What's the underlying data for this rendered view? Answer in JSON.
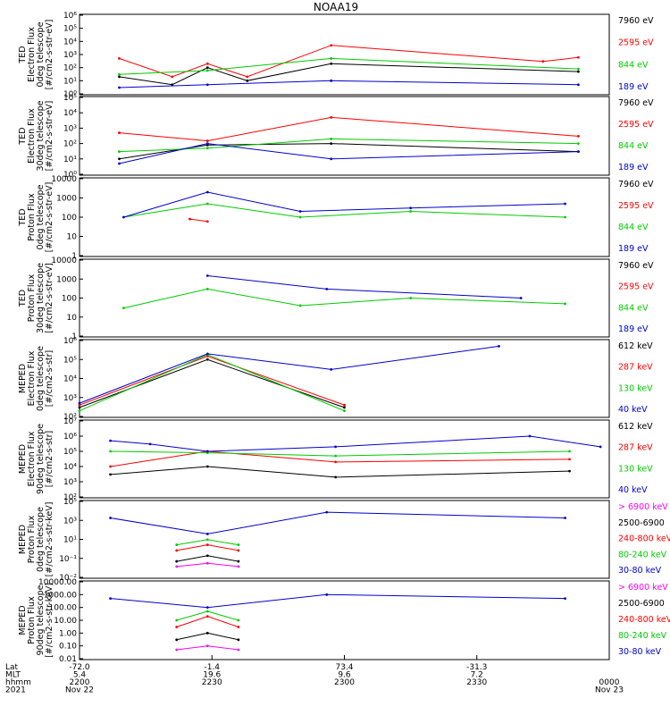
{
  "title": "NOAA19",
  "panels": [
    {
      "ylabel": [
        "TED",
        "Electron Flux",
        "0deg telescope",
        "[#/cm2-s-str-eV]"
      ],
      "yticks": [
        "10⁰",
        "10¹",
        "10²",
        "10³",
        "10⁴",
        "10⁵",
        "10⁶"
      ],
      "legend": [
        "7960 eV",
        "2595 eV",
        "844 eV",
        "189 eV"
      ],
      "legend_colors": [
        "#000000",
        "#ff0000",
        "#00cc00",
        "#0000cc"
      ]
    },
    {
      "ylabel": [
        "TED",
        "Electron Flux",
        "30deg telescope",
        "[#/cm2-s-str-eV]"
      ],
      "yticks": [
        "10⁰",
        "10¹",
        "10²",
        "10³",
        "10⁴",
        "10⁵"
      ],
      "legend": [
        "7960 eV",
        "2595 eV",
        "844 eV",
        "189 eV"
      ],
      "legend_colors": [
        "#000000",
        "#ff0000",
        "#00cc00",
        "#0000cc"
      ]
    },
    {
      "ylabel": [
        "TED",
        "Proton Flux",
        "0deg telescope",
        "[#/cm2-s-str-eV]"
      ],
      "yticks": [
        "1",
        "10",
        "100",
        "1000",
        "10000"
      ],
      "legend": [
        "7960 eV",
        "2595 eV",
        "844 eV",
        "189 eV"
      ],
      "legend_colors": [
        "#000000",
        "#ff0000",
        "#00cc00",
        "#0000cc"
      ]
    },
    {
      "ylabel": [
        "TED",
        "Proton Flux",
        "30deg telescope",
        "[#/cm2-s-str-eV]"
      ],
      "yticks": [
        "1",
        "10",
        "100",
        "1000",
        "10000"
      ],
      "legend": [
        "7960 eV",
        "2595 eV",
        "844 eV",
        "189 eV"
      ],
      "legend_colors": [
        "#000000",
        "#ff0000",
        "#00cc00",
        "#0000cc"
      ]
    },
    {
      "ylabel": [
        "MEPED",
        "Electron Flux",
        "0deg telescope",
        "[#/cm2-s-str]"
      ],
      "yticks": [
        "10²",
        "10³",
        "10⁴",
        "10⁵",
        "10⁶"
      ],
      "legend": [
        "612 keV",
        "287 keV",
        "130 keV",
        "40 keV"
      ],
      "legend_colors": [
        "#000000",
        "#ff0000",
        "#00cc00",
        "#0000cc"
      ]
    },
    {
      "ylabel": [
        "MEPED",
        "Electron Flux",
        "90deg telescope",
        "[#/cm2-s-str]"
      ],
      "yticks": [
        "10²",
        "10³",
        "10⁴",
        "10⁵",
        "10⁶",
        "10⁷"
      ],
      "legend": [
        "612 keV",
        "287 keV",
        "130 keV",
        "40 keV"
      ],
      "legend_colors": [
        "#000000",
        "#ff0000",
        "#00cc00",
        "#0000cc"
      ]
    },
    {
      "ylabel": [
        "MEPED",
        "Proton Flux",
        "0deg telescope",
        "[#/cm2-s-str-keV]"
      ],
      "yticks": [
        "10⁻²",
        "10⁻¹",
        "10¹",
        "10³",
        "10⁵"
      ],
      "legend": [
        "> 6900 keV",
        "2500-6900",
        "240-800 keV",
        "80-240 keV",
        "30-80 keV"
      ],
      "legend_colors": [
        "#ff00ff",
        "#000000",
        "#ff0000",
        "#00cc00",
        "#0000cc"
      ]
    },
    {
      "ylabel": [
        "MEPED",
        "Proton Flux",
        "90deg telescope",
        "[#/cm2-s-str-keV]"
      ],
      "yticks": [
        "0.01",
        "0.10",
        "1.00",
        "10.00",
        "100.00",
        "1000.00",
        "10000.00"
      ],
      "legend": [
        "> 6900 keV",
        "2500-6900",
        "240-800 keV",
        "80-240 keV",
        "30-80 keV"
      ],
      "legend_colors": [
        "#ff00ff",
        "#000000",
        "#ff0000",
        "#00cc00",
        "#0000cc"
      ]
    }
  ],
  "xaxis": {
    "row_labels": [
      "Lat",
      "MLT",
      "hhmm",
      "2021"
    ],
    "ticks": [
      {
        "lat": "-72.0",
        "mlt": "5.4",
        "hhmm": "2200",
        "date": "Nov 22"
      },
      {
        "lat": "-1.4",
        "mlt": "19.6",
        "hhmm": "2230",
        "date": ""
      },
      {
        "lat": "73.4",
        "mlt": "9.6",
        "hhmm": "2300",
        "date": ""
      },
      {
        "lat": "-31.3",
        "mlt": "7.2",
        "hhmm": "2330",
        "date": ""
      },
      {
        "lat": "",
        "mlt": "",
        "hhmm": "0000",
        "date": "Nov 23"
      }
    ]
  },
  "chart_data": {
    "type": "line",
    "title": "NOAA19",
    "x_range": [
      "2021-11-22 22:00",
      "2021-11-23 00:00"
    ],
    "y_scale": "log",
    "panels": [
      {
        "name": "TED Electron Flux 0deg telescope",
        "ylim": [
          1,
          1000000
        ],
        "series": [
          {
            "name": "7960 eV",
            "color": "#000000",
            "x": [
              "22:09",
              "22:21",
              "22:29",
              "22:38",
              "22:57",
              "23:53"
            ],
            "values": [
              20,
              5,
              100,
              10,
              200,
              50
            ]
          },
          {
            "name": "2595 eV",
            "color": "#ff0000",
            "x": [
              "22:09",
              "22:21",
              "22:29",
              "22:38",
              "22:57",
              "23:45",
              "23:53"
            ],
            "values": [
              500,
              20,
              200,
              20,
              5000,
              300,
              600
            ]
          },
          {
            "name": "844 eV",
            "color": "#00cc00",
            "x": [
              "22:09",
              "22:29",
              "22:57",
              "23:53"
            ],
            "values": [
              30,
              60,
              500,
              80
            ]
          },
          {
            "name": "189 eV",
            "color": "#0000cc",
            "x": [
              "22:09",
              "22:29",
              "22:57",
              "23:53"
            ],
            "values": [
              3,
              5,
              10,
              5
            ]
          }
        ]
      },
      {
        "name": "TED Electron Flux 30deg telescope",
        "ylim": [
          1,
          100000
        ],
        "series": [
          {
            "name": "7960 eV",
            "color": "#000000",
            "x": [
              "22:09",
              "22:29",
              "22:57",
              "23:53"
            ],
            "values": [
              10,
              80,
              100,
              30
            ]
          },
          {
            "name": "2595 eV",
            "color": "#ff0000",
            "x": [
              "22:09",
              "22:29",
              "22:57",
              "23:53"
            ],
            "values": [
              500,
              150,
              5000,
              300
            ]
          },
          {
            "name": "844 eV",
            "color": "#00cc00",
            "x": [
              "22:09",
              "22:29",
              "22:57",
              "23:53"
            ],
            "values": [
              30,
              50,
              200,
              100
            ]
          },
          {
            "name": "189 eV",
            "color": "#0000cc",
            "x": [
              "22:09",
              "22:29",
              "22:57",
              "23:53"
            ],
            "values": [
              5,
              100,
              10,
              30
            ]
          }
        ]
      },
      {
        "name": "TED Proton Flux 0deg telescope",
        "ylim": [
          1,
          10000
        ],
        "series": [
          {
            "name": "2595 eV",
            "color": "#ff0000",
            "x": [
              "22:25",
              "22:29"
            ],
            "values": [
              80,
              60
            ]
          },
          {
            "name": "844 eV",
            "color": "#00cc00",
            "x": [
              "22:10",
              "22:29",
              "22:50",
              "23:15",
              "23:50"
            ],
            "values": [
              100,
              500,
              100,
              200,
              100
            ]
          },
          {
            "name": "189 eV",
            "color": "#0000cc",
            "x": [
              "22:10",
              "22:29",
              "22:50",
              "23:15",
              "23:50"
            ],
            "values": [
              100,
              2000,
              200,
              300,
              500
            ]
          }
        ]
      },
      {
        "name": "TED Proton Flux 30deg telescope",
        "ylim": [
          1,
          10000
        ],
        "series": [
          {
            "name": "844 eV",
            "color": "#00cc00",
            "x": [
              "22:10",
              "22:29",
              "22:50",
              "23:15",
              "23:50"
            ],
            "values": [
              30,
              300,
              40,
              100,
              50
            ]
          },
          {
            "name": "189 eV",
            "color": "#0000cc",
            "x": [
              "22:29",
              "22:56",
              "23:40"
            ],
            "values": [
              1500,
              300,
              100
            ]
          }
        ]
      },
      {
        "name": "MEPED Electron Flux 0deg telescope",
        "ylim": [
          100,
          1000000
        ],
        "series": [
          {
            "name": "612 keV",
            "color": "#000000",
            "x": [
              "22:00",
              "22:29",
              "23:00"
            ],
            "values": [
              300,
              100000,
              300
            ]
          },
          {
            "name": "287 keV",
            "color": "#ff0000",
            "x": [
              "22:00",
              "22:29",
              "23:00"
            ],
            "values": [
              400,
              150000,
              400
            ]
          },
          {
            "name": "130 keV",
            "color": "#00cc00",
            "x": [
              "22:00",
              "22:29",
              "23:00"
            ],
            "values": [
              200,
              180000,
              200
            ]
          },
          {
            "name": "40 keV",
            "color": "#0000cc",
            "x": [
              "22:00",
              "22:29",
              "22:57",
              "23:35"
            ],
            "values": [
              500,
              200000,
              30000,
              500000
            ]
          }
        ]
      },
      {
        "name": "MEPED Electron Flux 90deg telescope",
        "ylim": [
          100,
          10000000
        ],
        "series": [
          {
            "name": "612 keV",
            "color": "#000000",
            "x": [
              "22:07",
              "22:29",
              "22:58",
              "23:51"
            ],
            "values": [
              3000,
              10000,
              2000,
              5000
            ]
          },
          {
            "name": "287 keV",
            "color": "#ff0000",
            "x": [
              "22:07",
              "22:29",
              "22:58",
              "23:51"
            ],
            "values": [
              10000,
              100000,
              20000,
              30000
            ]
          },
          {
            "name": "130 keV",
            "color": "#00cc00",
            "x": [
              "22:07",
              "22:29",
              "22:58",
              "23:51"
            ],
            "values": [
              100000,
              80000,
              50000,
              100000
            ]
          },
          {
            "name": "40 keV",
            "color": "#0000cc",
            "x": [
              "22:07",
              "22:16",
              "22:29",
              "22:58",
              "23:42",
              "23:58"
            ],
            "values": [
              500000,
              300000,
              100000,
              200000,
              1000000,
              200000
            ]
          }
        ]
      },
      {
        "name": "MEPED Proton Flux 0deg telescope",
        "ylim": [
          0.01,
          100000
        ],
        "series": [
          {
            "name": "> 6900 keV",
            "color": "#ff00ff",
            "x": [
              "22:22",
              "22:29",
              "22:36"
            ],
            "values": [
              0.1,
              0.2,
              0.1
            ]
          },
          {
            "name": "2500-6900",
            "color": "#000000",
            "x": [
              "22:22",
              "22:29",
              "22:36"
            ],
            "values": [
              0.3,
              1,
              0.3
            ]
          },
          {
            "name": "240-800 keV",
            "color": "#ff0000",
            "x": [
              "22:22",
              "22:29",
              "22:36"
            ],
            "values": [
              3,
              10,
              3
            ]
          },
          {
            "name": "80-240 keV",
            "color": "#00cc00",
            "x": [
              "22:22",
              "22:29",
              "22:36"
            ],
            "values": [
              10,
              30,
              10
            ]
          },
          {
            "name": "30-80 keV",
            "color": "#0000cc",
            "x": [
              "22:07",
              "22:29",
              "22:56",
              "23:50"
            ],
            "values": [
              3000,
              100,
              10000,
              3000
            ]
          }
        ]
      },
      {
        "name": "MEPED Proton Flux 90deg telescope",
        "ylim": [
          0.01,
          10000
        ],
        "series": [
          {
            "name": "> 6900 keV",
            "color": "#ff00ff",
            "x": [
              "22:22",
              "22:29",
              "22:36"
            ],
            "values": [
              0.05,
              0.1,
              0.05
            ]
          },
          {
            "name": "2500-6900",
            "color": "#000000",
            "x": [
              "22:22",
              "22:29",
              "22:36"
            ],
            "values": [
              0.3,
              1,
              0.3
            ]
          },
          {
            "name": "240-800 keV",
            "color": "#ff0000",
            "x": [
              "22:22",
              "22:29",
              "22:36"
            ],
            "values": [
              3,
              20,
              3
            ]
          },
          {
            "name": "80-240 keV",
            "color": "#00cc00",
            "x": [
              "22:22",
              "22:29",
              "22:36"
            ],
            "values": [
              10,
              50,
              10
            ]
          },
          {
            "name": "30-80 keV",
            "color": "#0000cc",
            "x": [
              "22:07",
              "22:29",
              "22:56",
              "23:50"
            ],
            "values": [
              500,
              100,
              1000,
              500
            ]
          }
        ]
      }
    ]
  }
}
